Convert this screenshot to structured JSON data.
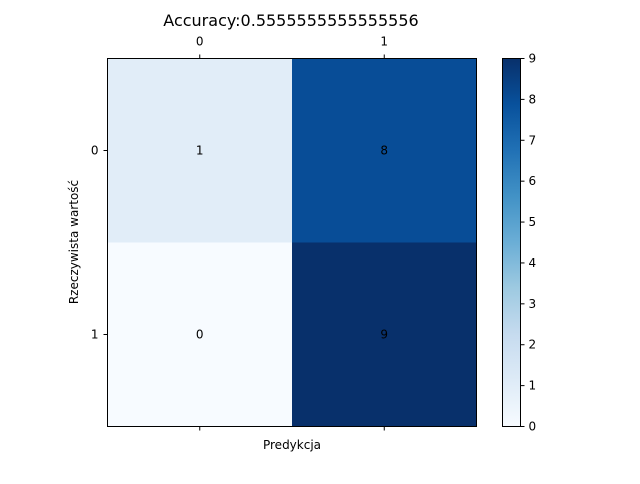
{
  "chart_data": {
    "type": "heatmap",
    "title": "Accuracy:0.5555555555555556",
    "xlabel": "Predykcja",
    "ylabel": "Rzeczywista wartość",
    "x_categories": [
      "0",
      "1"
    ],
    "y_categories": [
      "0",
      "1"
    ],
    "values": [
      [
        1,
        8
      ],
      [
        0,
        9
      ]
    ],
    "colormap": "Blues",
    "vmin": 0,
    "vmax": 9,
    "colorbar_ticks": [
      "0",
      "1",
      "2",
      "3",
      "4",
      "5",
      "6",
      "7",
      "8",
      "9"
    ],
    "x_ticks_position": "top",
    "grid": false
  }
}
